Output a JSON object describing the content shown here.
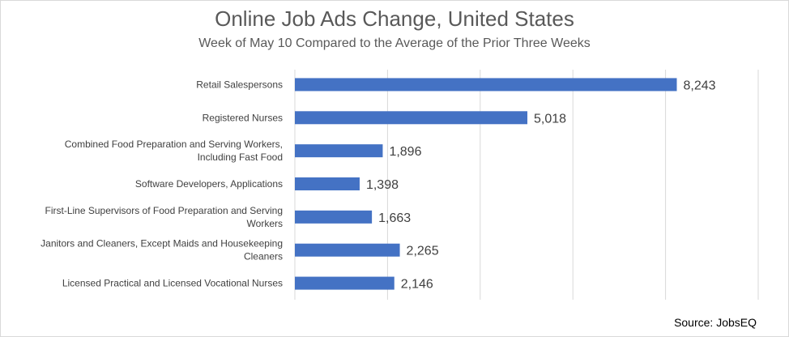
{
  "chart_data": {
    "type": "bar",
    "orientation": "horizontal",
    "title": "Online Job Ads Change, United States",
    "subtitle": "Week of May 10 Compared to the Average of the Prior Three Weeks",
    "categories": [
      "Retail Salespersons",
      "Registered Nurses",
      "Combined Food Preparation and Serving Workers, Including Fast Food",
      "Software Developers, Applications",
      "First-Line Supervisors of Food Preparation and Serving Workers",
      "Janitors and Cleaners, Except Maids and Housekeeping Cleaners",
      "Licensed Practical and Licensed Vocational Nurses"
    ],
    "category_lines": [
      [
        "Retail Salespersons"
      ],
      [
        "Registered Nurses"
      ],
      [
        "Combined Food Preparation and Serving Workers,",
        "Including Fast Food"
      ],
      [
        "Software Developers, Applications"
      ],
      [
        "First-Line Supervisors of Food Preparation and Serving",
        "Workers"
      ],
      [
        "Janitors and Cleaners, Except Maids and Housekeeping",
        "Cleaners"
      ],
      [
        "Licensed Practical and Licensed Vocational Nurses"
      ]
    ],
    "values": [
      8243,
      5018,
      1896,
      1398,
      1663,
      2265,
      2146
    ],
    "value_labels": [
      "8,243",
      "5,018",
      "1,896",
      "1,398",
      "1,663",
      "2,265",
      "2,146"
    ],
    "xlim": [
      0,
      10000
    ],
    "grid": true,
    "bar_color": "#4472C4",
    "grid_color": "#d9d9d9"
  },
  "source": "Source: JobsEQ"
}
